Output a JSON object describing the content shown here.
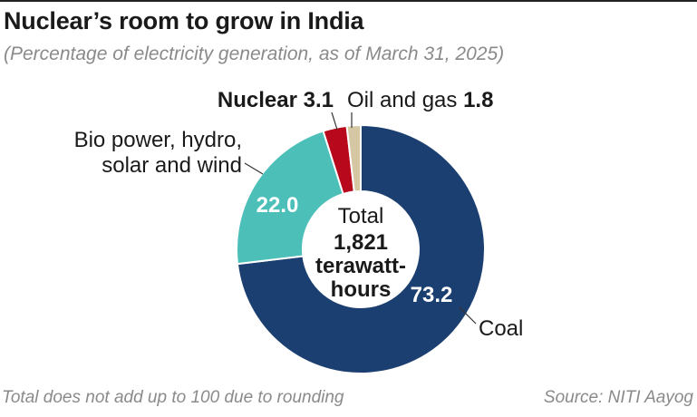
{
  "header": {
    "title": "Nuclear’s room to grow in India",
    "subtitle": "(Percentage of electricity generation, as of March 31, 2025)"
  },
  "footer": {
    "note": "Total does not add up to 100 due to rounding",
    "source": "Source: NITI Aayog"
  },
  "chart_data": {
    "type": "pie",
    "style": "donut",
    "title": "Nuclear’s room to grow in India",
    "subtitle": "(Percentage of electricity generation, as of March 31, 2025)",
    "unit": "percent",
    "center_label": {
      "line1": "Total",
      "line2": "1,821",
      "line3": "terawatt-",
      "line4": "hours"
    },
    "slices": [
      {
        "name": "Coal",
        "value": 73.2,
        "value_label": "73.2",
        "color": "#1b3f70"
      },
      {
        "name": "Bio power, hydro, solar and wind",
        "label_line1": "Bio power, hydro,",
        "label_line2": "solar and wind",
        "value": 22.0,
        "value_label": "22.0",
        "color": "#4cbfb9"
      },
      {
        "name": "Nuclear",
        "value": 3.1,
        "value_label": "3.1",
        "color": "#b8081c"
      },
      {
        "name": "Oil and gas",
        "value": 1.8,
        "value_label": "1.8",
        "color": "#d5c6a4"
      }
    ]
  }
}
